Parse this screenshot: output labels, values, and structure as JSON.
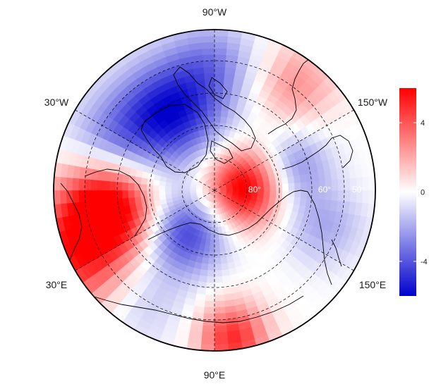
{
  "map": {
    "projection": "north-polar-stereographic",
    "longitude_labels": [
      {
        "id": "lon-label-90w",
        "text": "90°W",
        "lon": -90
      },
      {
        "id": "lon-label-30w",
        "text": "30°W",
        "lon": -30
      },
      {
        "id": "lon-label-150w",
        "text": "150°W",
        "lon": -150
      },
      {
        "id": "lon-label-30e",
        "text": "30°E",
        "lon": 30
      },
      {
        "id": "lon-label-150e",
        "text": "150°E",
        "lon": 150
      },
      {
        "id": "lon-label-90e",
        "text": "90°E",
        "lon": 90
      }
    ],
    "latitude_labels": [
      {
        "id": "lat-label-80",
        "text": "80°",
        "lat": 80
      },
      {
        "id": "lat-label-60",
        "text": "60°",
        "lat": 60
      },
      {
        "id": "lat-label-50",
        "text": "50°",
        "lat": 50
      }
    ],
    "grid": true,
    "coastlines": true
  },
  "colorbar": {
    "ticks": [
      "4",
      "0",
      "-4"
    ],
    "tick_values": [
      4,
      0,
      -4
    ],
    "range": [
      -6,
      6
    ],
    "colors": {
      "low": "#0000cc",
      "mid": "#ffffff",
      "high": "#ff0000"
    }
  }
}
